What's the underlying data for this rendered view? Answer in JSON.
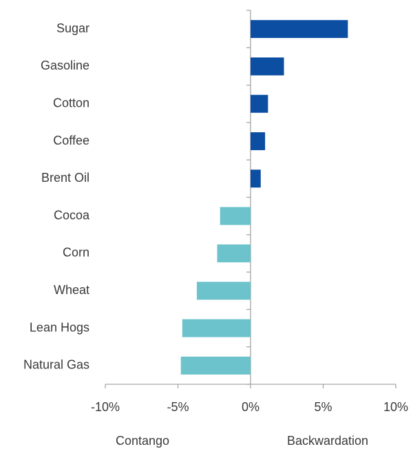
{
  "chart_data": {
    "type": "hbar",
    "categories": [
      "Sugar",
      "Gasoline",
      "Cotton",
      "Coffee",
      "Brent Oil",
      "Cocoa",
      "Corn",
      "Wheat",
      "Lean Hogs",
      "Natural Gas"
    ],
    "values": [
      6.7,
      2.3,
      1.2,
      1.0,
      0.7,
      -2.1,
      -2.3,
      -3.7,
      -4.7,
      -4.8
    ],
    "colors": [
      "#0b4ea2",
      "#0b4ea2",
      "#0b4ea2",
      "#0b4ea2",
      "#0b4ea2",
      "#6cc3cb",
      "#6cc3cb",
      "#6cc3cb",
      "#6cc3cb",
      "#6cc3cb"
    ],
    "xlim": [
      -10,
      10
    ],
    "xticks": [
      {
        "value": -10,
        "label": "-10%"
      },
      {
        "value": -5,
        "label": "-5%"
      },
      {
        "value": 0,
        "label": "0%"
      },
      {
        "value": 5,
        "label": "5%"
      },
      {
        "value": 10,
        "label": "10%"
      }
    ],
    "annotations": [
      "Contango",
      "Backwardation"
    ]
  }
}
